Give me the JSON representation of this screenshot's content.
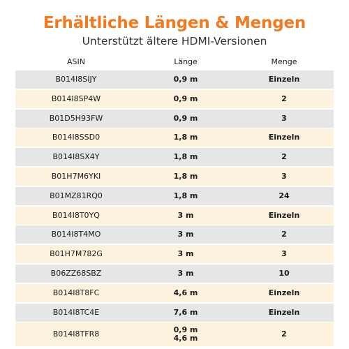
{
  "title": "Erhältliche Längen & Mengen",
  "subtitle": "Unterstützt ältere HDMI-Versionen",
  "colors": {
    "title": "#f07b22",
    "subtitle": "#333333",
    "text": "#1a1a1a",
    "row_gray": "#e6e6e6",
    "row_cream": "#fdf2de"
  },
  "table": {
    "headers": {
      "asin": "ASIN",
      "length": "Länge",
      "quantity": "Menge"
    },
    "rows": [
      {
        "asin": "B014I8SIJY",
        "length": [
          "0,9 m"
        ],
        "quantity": "Einzeln"
      },
      {
        "asin": "B014I8SP4W",
        "length": [
          "0,9 m"
        ],
        "quantity": "2"
      },
      {
        "asin": "B01D5H93FW",
        "length": [
          "0,9 m"
        ],
        "quantity": "3"
      },
      {
        "asin": "B014I8SSD0",
        "length": [
          "1,8 m"
        ],
        "quantity": "Einzeln"
      },
      {
        "asin": "B014I8SX4Y",
        "length": [
          "1,8 m"
        ],
        "quantity": "2"
      },
      {
        "asin": "B01H7M6YKI",
        "length": [
          "1,8 m"
        ],
        "quantity": "3"
      },
      {
        "asin": "B01MZ81RQ0",
        "length": [
          "1,8 m"
        ],
        "quantity": "24"
      },
      {
        "asin": "B014I8T0YQ",
        "length": [
          "3 m"
        ],
        "quantity": "Einzeln"
      },
      {
        "asin": "B014I8T4MO",
        "length": [
          "3 m"
        ],
        "quantity": "2"
      },
      {
        "asin": "B01H7M782G",
        "length": [
          "3 m"
        ],
        "quantity": "3"
      },
      {
        "asin": "B06ZZ68SBZ",
        "length": [
          "3 m"
        ],
        "quantity": "10"
      },
      {
        "asin": "B014I8T8FC",
        "length": [
          "4,6 m"
        ],
        "quantity": "Einzeln"
      },
      {
        "asin": "B014I8TC4E",
        "length": [
          "7,6 m"
        ],
        "quantity": "Einzeln"
      },
      {
        "asin": "B014I8TFR8",
        "length": [
          "0,9 m",
          "4,6 m"
        ],
        "quantity": "2"
      }
    ]
  }
}
